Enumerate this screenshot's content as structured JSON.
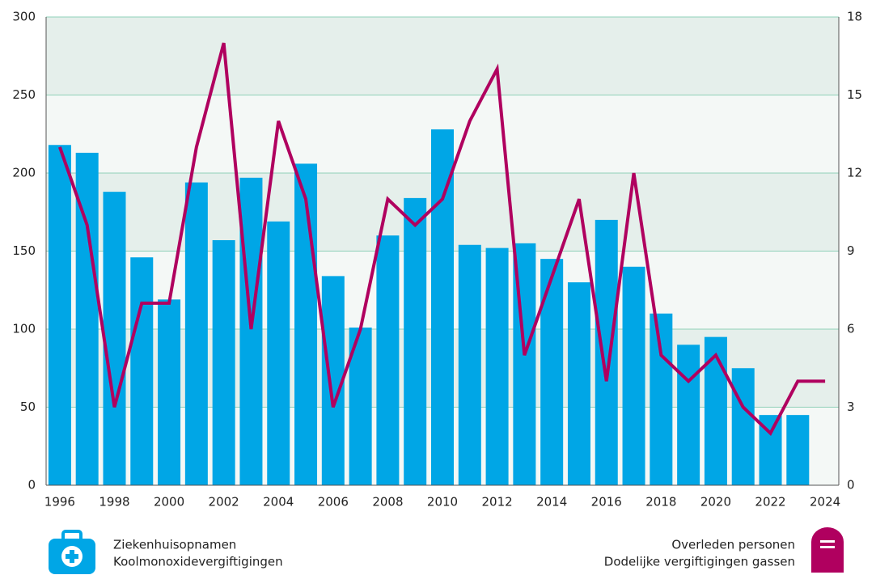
{
  "chart_data": {
    "type": "bar_line",
    "categories": [
      "1996",
      null,
      "1998",
      null,
      "2000",
      null,
      "2002",
      null,
      "2004",
      null,
      "2006",
      null,
      "2008",
      null,
      "2010",
      null,
      "2012",
      null,
      "2014",
      null,
      "2016",
      null,
      "2018",
      null,
      "2020",
      null,
      "2022",
      null,
      "2024"
    ],
    "series": [
      {
        "name": "Ziekenhuisopnamen",
        "note": "Koolmonoxidevergiftigingen",
        "color": "#00a6e6",
        "kind": "bar",
        "values": [
          218,
          213,
          188,
          146,
          119,
          194,
          157,
          197,
          169,
          206,
          134,
          101,
          160,
          184,
          228,
          154,
          152,
          155,
          145,
          130,
          170,
          140,
          110,
          90,
          95,
          75,
          45,
          45,
          null
        ]
      },
      {
        "name": "Overleden personen",
        "note": "Dodelijke vergiftigingen gassen",
        "color": "#b0005f",
        "kind": "line",
        "axis": "y2",
        "values": [
          13,
          10,
          3,
          7,
          7,
          13,
          17,
          6,
          14,
          11,
          3,
          6,
          11,
          10,
          11,
          14,
          16,
          5,
          8,
          11,
          4,
          12,
          5,
          4,
          5,
          3,
          2,
          4,
          4
        ]
      }
    ],
    "ylim": [
      0,
      300
    ],
    "yticks": [
      0,
      50,
      100,
      150,
      200,
      250,
      300
    ],
    "y2lim": [
      0,
      18
    ],
    "y2ticks": [
      0,
      3,
      6,
      9,
      12,
      15,
      18
    ],
    "grid": true
  }
}
